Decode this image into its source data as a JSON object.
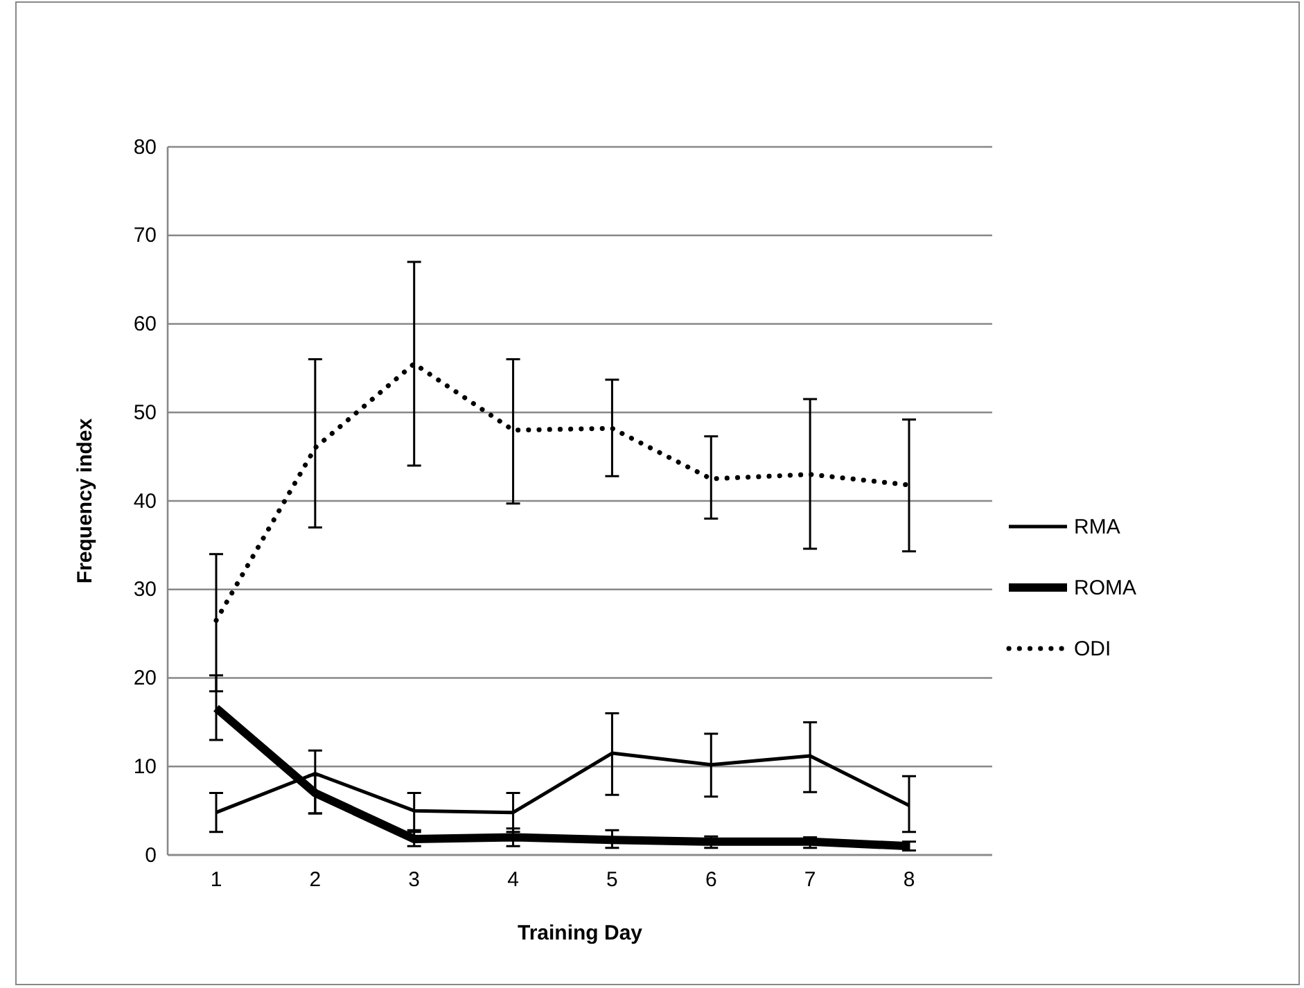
{
  "chart_data": {
    "type": "line",
    "xlabel": "Training Day",
    "ylabel": "Frequency index",
    "categories": [
      "1",
      "2",
      "3",
      "4",
      "5",
      "6",
      "7",
      "8"
    ],
    "series": [
      {
        "name": "RMA",
        "color": "#000000",
        "line_style": "solid",
        "values": [
          4.8,
          9.2,
          5,
          4.8,
          11.5,
          10.2,
          11.2,
          5.6
        ],
        "errors": [
          [
            2.6,
            7
          ],
          [
            4.7,
            11.8
          ],
          [
            2.6,
            7
          ],
          [
            2.6,
            7
          ],
          [
            6.8,
            16
          ],
          [
            6.6,
            13.7
          ],
          [
            7.1,
            15
          ],
          [
            2.6,
            8.9
          ]
        ]
      },
      {
        "name": "ROMA",
        "color": "#000000",
        "line_style": "solid",
        "values": [
          16.6,
          7,
          1.8,
          2,
          1.7,
          1.5,
          1.5,
          1
        ],
        "errors": [
          [
            13,
            20.3
          ],
          [
            4.7,
            9
          ],
          [
            1,
            2.8
          ],
          [
            1,
            3
          ],
          [
            0.8,
            2.8
          ],
          [
            0.8,
            2.1
          ],
          [
            0.8,
            2
          ],
          [
            0.5,
            1.5
          ]
        ]
      },
      {
        "name": "ODI",
        "color": "#000000",
        "line_style": "dotted",
        "values": [
          26.5,
          46,
          55.5,
          48,
          48.2,
          42.5,
          43,
          41.8
        ],
        "errors": [
          [
            18.5,
            34
          ],
          [
            37,
            56
          ],
          [
            44,
            67
          ],
          [
            39.7,
            56
          ],
          [
            42.8,
            53.7
          ],
          [
            38,
            47.3
          ],
          [
            34.6,
            51.5
          ],
          [
            34.3,
            49.2
          ]
        ]
      }
    ],
    "ylim": [
      0,
      80
    ],
    "yticks": [
      0,
      10,
      20,
      30,
      40,
      50,
      60,
      70,
      80
    ],
    "grid": "y",
    "legend": "right"
  }
}
